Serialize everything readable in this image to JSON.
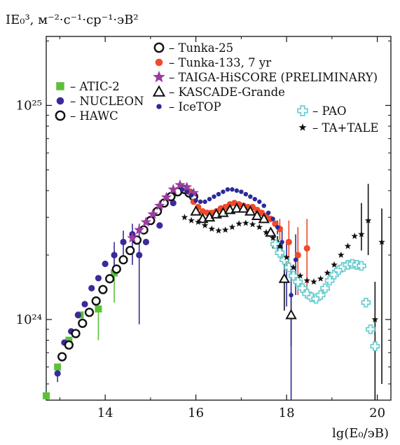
{
  "chart_data": {
    "type": "scatter",
    "ylabel": "IE₀³, м⁻²·с⁻¹·ср⁻¹·эВ²",
    "xlabel": "lg(E₀/эВ)",
    "xlim": [
      12.7,
      20.3
    ],
    "ylim": [
      4.2e+23,
      2.1e+25
    ],
    "yscale": "log",
    "x_ticks": [
      {
        "value": 14,
        "label": "14"
      },
      {
        "value": 16,
        "label": "16"
      },
      {
        "value": 18,
        "label": "18"
      },
      {
        "value": 20,
        "label": "20"
      }
    ],
    "y_ticks": [
      {
        "value": 1e+24,
        "label": "10²⁴"
      },
      {
        "value": 1e+25,
        "label": "10²⁵"
      }
    ],
    "series": [
      {
        "name": "– ATIC-2",
        "marker": "square",
        "color": "#5cc13a",
        "x": [
          12.7,
          12.95,
          13.2,
          13.45,
          13.85,
          14.2
        ],
        "y": [
          4.4e+23,
          6e+23,
          8e+23,
          1.05e+24,
          1.12e+24,
          1.65e+24
        ],
        "err_lo": [
          0,
          0,
          0,
          0,
          3.2e+23,
          4.5e+23
        ],
        "err_hi": [
          0,
          0,
          0,
          0,
          0,
          4.5e+23
        ]
      },
      {
        "name": "– NUCLEON",
        "marker": "circle",
        "color": "#3a2a9a",
        "x": [
          12.95,
          13.1,
          13.25,
          13.4,
          13.55,
          13.7,
          13.85,
          14.0,
          14.2,
          14.4,
          14.6,
          14.75,
          14.9,
          15.2,
          15.5
        ],
        "y": [
          5.6e+23,
          7.8e+23,
          8.8e+23,
          1.05e+24,
          1.18e+24,
          1.4e+24,
          1.56e+24,
          1.82e+24,
          2e+24,
          2.3e+24,
          2.5e+24,
          2e+24,
          2.3e+24,
          2.75e+24,
          3.5e+24
        ],
        "err_lo": [
          5e+22,
          0,
          0,
          0,
          0,
          0,
          0,
          0,
          3e+23,
          4.5e+23,
          7e+23,
          1.05e+24,
          0,
          0,
          0
        ],
        "err_hi": [
          5e+22,
          0,
          0,
          0,
          0,
          0,
          0,
          0,
          3e+23,
          3e+23,
          3e+23,
          8e+23,
          0,
          0,
          0
        ]
      },
      {
        "name": "– HAWC",
        "marker": "circle-open",
        "color": "#111111",
        "x": [
          13.05,
          13.2,
          13.35,
          13.5,
          13.65,
          13.8,
          13.95,
          14.1,
          14.25,
          14.4,
          14.55,
          14.7,
          14.85,
          15.0,
          15.15,
          15.3,
          15.45,
          15.6,
          15.75
        ],
        "y": [
          6.7e+23,
          7.6e+23,
          8.6e+23,
          9.6e+23,
          1.08e+24,
          1.22e+24,
          1.38e+24,
          1.55e+24,
          1.72e+24,
          1.9e+24,
          2.1e+24,
          2.35e+24,
          2.62e+24,
          2.9e+24,
          3.2e+24,
          3.5e+24,
          3.75e+24,
          3.95e+24,
          4.05e+24
        ],
        "err_lo": [],
        "err_hi": []
      },
      {
        "name": "– Tunka-25",
        "marker": "circle-open",
        "color": "#111111",
        "x": [
          15.85,
          15.95
        ],
        "y": [
          3.9e+24,
          3.75e+24
        ],
        "err_lo": [],
        "err_hi": []
      },
      {
        "name": "– Tunka-133, 7 yr",
        "marker": "circle",
        "color": "#ef4a2a",
        "x": [
          15.85,
          15.95,
          16.05,
          16.15,
          16.25,
          16.35,
          16.45,
          16.55,
          16.65,
          16.75,
          16.85,
          16.95,
          17.05,
          17.15,
          17.25,
          17.35,
          17.45,
          17.55,
          17.65,
          17.75,
          17.85,
          18.05,
          18.25,
          18.45
        ],
        "y": [
          3.95e+24,
          3.55e+24,
          3.35e+24,
          3.2e+24,
          3.15e+24,
          3.15e+24,
          3.2e+24,
          3.3e+24,
          3.35e+24,
          3.45e+24,
          3.5e+24,
          3.45e+24,
          3.4e+24,
          3.35e+24,
          3.35e+24,
          3.25e+24,
          3.15e+24,
          3.05e+24,
          2.95e+24,
          2.8e+24,
          2.65e+24,
          2.3e+24,
          2e+24,
          2.15e+24
        ],
        "err_lo": [
          0,
          0,
          0,
          0,
          0,
          0,
          0,
          0,
          0,
          0,
          0,
          0,
          0,
          0,
          0,
          0,
          0,
          0,
          0,
          0,
          3e+23,
          6e+23,
          7e+23,
          8e+23
        ],
        "err_hi": [
          0,
          0,
          0,
          0,
          0,
          0,
          0,
          0,
          0,
          0,
          0,
          0,
          0,
          0,
          0,
          0,
          0,
          0,
          0,
          0,
          3e+23,
          6e+23,
          7e+23,
          8e+23
        ]
      },
      {
        "name": "– TAIGA-HiSCORE (PRELIMINARY)",
        "marker": "star",
        "color": "#9b3d9e",
        "x": [
          14.6,
          14.75,
          14.9,
          15.05,
          15.2,
          15.35,
          15.5,
          15.65,
          15.8,
          15.95
        ],
        "y": [
          2.4e+24,
          2.62e+24,
          2.85e+24,
          3.1e+24,
          3.4e+24,
          3.72e+24,
          4.05e+24,
          4.25e+24,
          4.15e+24,
          3.9e+24
        ],
        "err_lo": [],
        "err_hi": []
      },
      {
        "name": "– KASCADE-Grande",
        "marker": "triangle-open",
        "color": "#111111",
        "x": [
          16.0,
          16.15,
          16.3,
          16.45,
          16.6,
          16.75,
          16.9,
          17.05,
          17.2,
          17.35,
          17.5,
          17.65,
          17.8,
          17.95,
          18.1
        ],
        "y": [
          3.2e+24,
          2.95e+24,
          3e+24,
          3.1e+24,
          3.15e+24,
          3.25e+24,
          3.3e+24,
          3.3e+24,
          3.2e+24,
          3.05e+24,
          2.95e+24,
          2.55e+24,
          2.25e+24,
          1.55e+24,
          1.05e+24
        ],
        "err_lo": [
          0,
          0,
          0,
          0,
          0,
          0,
          0,
          0,
          0,
          0,
          0,
          0,
          2e+23,
          4.5e+23,
          3e+23
        ],
        "err_hi": [
          0,
          0,
          0,
          0,
          0,
          0,
          0,
          0,
          0,
          0,
          0,
          0,
          2e+23,
          4.5e+23,
          3e+23
        ]
      },
      {
        "name": "– IceTOP",
        "marker": "dot",
        "color": "#2a2a9a",
        "x": [
          15.7,
          15.8,
          15.9,
          16.0,
          16.1,
          16.2,
          16.3,
          16.4,
          16.5,
          16.6,
          16.7,
          16.8,
          16.9,
          17.0,
          17.1,
          17.2,
          17.3,
          17.4,
          17.5,
          17.6,
          17.7,
          17.8,
          17.9,
          18.0,
          18.1,
          18.2
        ],
        "y": [
          4.05e+24,
          3.95e+24,
          3.8e+24,
          3.6e+24,
          3.55e+24,
          3.55e+24,
          3.65e+24,
          3.75e+24,
          3.85e+24,
          3.95e+24,
          4.05e+24,
          4.05e+24,
          4e+24,
          3.95e+24,
          3.85e+24,
          3.75e+24,
          3.65e+24,
          3.55e+24,
          3.4e+24,
          3.15e+24,
          2.95e+24,
          2.7e+24,
          2.3e+24,
          1.75e+24,
          1.3e+24,
          1.9e+24
        ],
        "err_lo": [
          0,
          0,
          0,
          0,
          0,
          0,
          0,
          0,
          0,
          0,
          0,
          0,
          0,
          0,
          0,
          0,
          0,
          0,
          0,
          0,
          0,
          2e+23,
          4e+23,
          6e+23,
          1.1e+24,
          6e+23
        ],
        "err_hi": [
          0,
          0,
          0,
          0,
          0,
          0,
          0,
          0,
          0,
          0,
          0,
          0,
          0,
          0,
          0,
          0,
          0,
          0,
          0,
          0,
          0,
          2e+23,
          4e+23,
          6e+23,
          4e+23,
          6e+23
        ]
      },
      {
        "name": "– PAO",
        "marker": "cross-open",
        "color": "#6fcfcf",
        "x": [
          17.75,
          17.85,
          17.95,
          18.05,
          18.15,
          18.25,
          18.35,
          18.45,
          18.55,
          18.65,
          18.75,
          18.85,
          18.95,
          19.05,
          19.15,
          19.25,
          19.35,
          19.45,
          19.55,
          19.65,
          19.75,
          19.85,
          19.95
        ],
        "y": [
          2.25e+24,
          2.05e+24,
          1.9e+24,
          1.75e+24,
          1.6e+24,
          1.5e+24,
          1.4e+24,
          1.32e+24,
          1.27e+24,
          1.25e+24,
          1.3e+24,
          1.4e+24,
          1.52e+24,
          1.62e+24,
          1.7e+24,
          1.76e+24,
          1.8e+24,
          1.82e+24,
          1.8e+24,
          1.78e+24,
          1.2e+24,
          9e+23,
          7.5e+23
        ],
        "err_lo": [],
        "err_hi": []
      },
      {
        "name": "– TA+TALE",
        "marker": "star-small",
        "color": "#111111",
        "x": [
          15.75,
          15.9,
          16.05,
          16.2,
          16.35,
          16.5,
          16.65,
          16.8,
          16.95,
          17.1,
          17.25,
          17.4,
          17.55,
          17.7,
          17.85,
          18.0,
          18.15,
          18.3,
          18.45,
          18.6,
          18.75,
          18.9,
          19.05,
          19.2,
          19.35,
          19.5,
          19.65,
          19.8,
          19.95,
          20.1
        ],
        "y": [
          3e+24,
          2.9e+24,
          2.85e+24,
          2.75e+24,
          2.65e+24,
          2.6e+24,
          2.62e+24,
          2.7e+24,
          2.8e+24,
          2.82e+24,
          2.78e+24,
          2.7e+24,
          2.55e+24,
          2.4e+24,
          2.2e+24,
          1.95e+24,
          1.75e+24,
          1.6e+24,
          1.52e+24,
          1.5e+24,
          1.55e+24,
          1.65e+24,
          1.8e+24,
          2e+24,
          2.2e+24,
          2.45e+24,
          2.5e+24,
          2.9e+24,
          1e+24,
          2.3e+24
        ],
        "err_lo": [
          0,
          0,
          0,
          0,
          0,
          0,
          0,
          0,
          0,
          0,
          0,
          0,
          0,
          0,
          0,
          0,
          0,
          0,
          0,
          0,
          0,
          0,
          0,
          0,
          0,
          0,
          4e+23,
          9e+23,
          6e+23,
          1.8e+24
        ],
        "err_hi": [
          0,
          0,
          0,
          0,
          0,
          0,
          0,
          0,
          0,
          0,
          0,
          0,
          0,
          0,
          0,
          0,
          0,
          0,
          0,
          0,
          0,
          0,
          0,
          0,
          0,
          0,
          1e+24,
          1.4e+24,
          5e+23,
          1e+24
        ]
      }
    ]
  }
}
